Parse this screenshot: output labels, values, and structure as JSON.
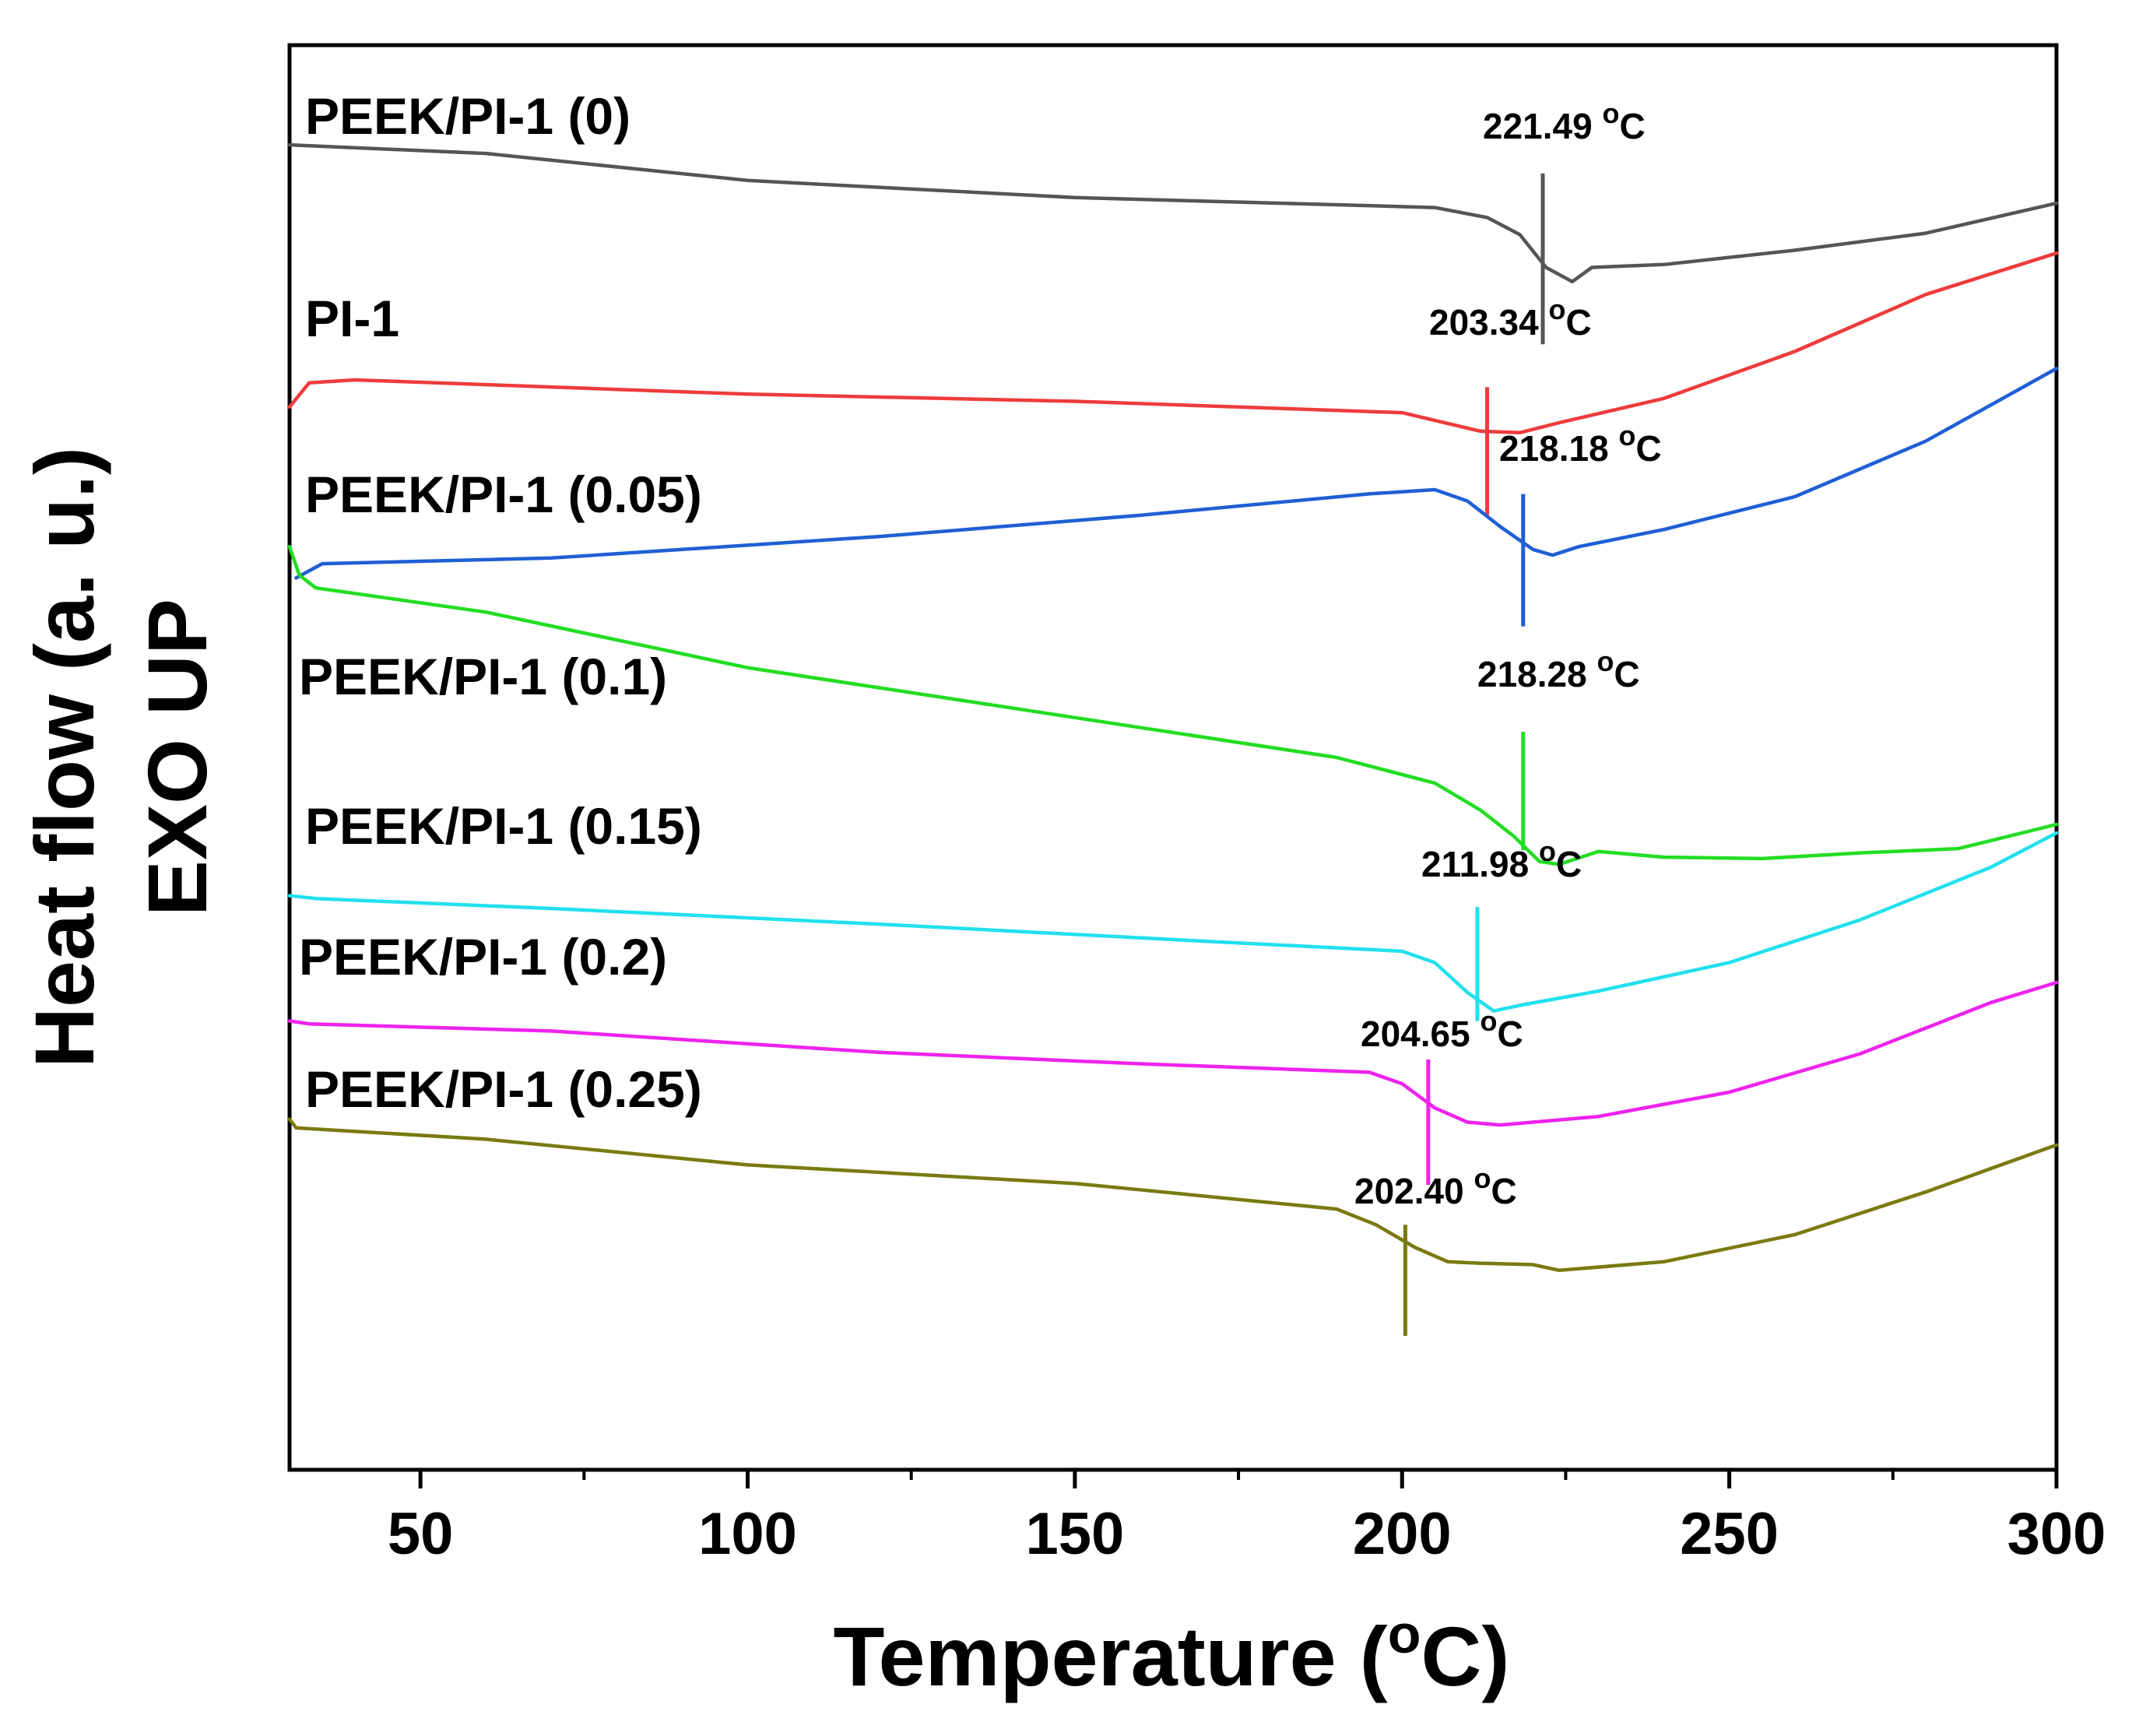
{
  "chart_data": {
    "type": "line",
    "xlabel": "Temperature (°C)",
    "xlabel_parts": {
      "main": "Temperature (",
      "sup": "o",
      "end": "C)"
    },
    "ylabel_line1": "Heat flow (a. u.)",
    "ylabel_line2": "EXO UP",
    "xlim": [
      30,
      300
    ],
    "ylim": [
      0,
      100
    ],
    "x_ticks": [
      50,
      100,
      150,
      200,
      250,
      300
    ],
    "x_tick_labels": [
      "50",
      "100",
      "150",
      "200",
      "250",
      "300"
    ],
    "x_minor_ticks": [
      75,
      125,
      175,
      225,
      275
    ],
    "yticks": "none (arbitrary units)",
    "annotation_unit_sup": "o",
    "annotation_unit_end": "C",
    "series": [
      {
        "name": "PEEK/PI-1 (0)",
        "color": "#555555",
        "annotation": "221.49",
        "marker_x": 221.5,
        "marker_y": [
          79,
          91
        ],
        "points": [
          [
            30,
            93
          ],
          [
            60,
            92.4
          ],
          [
            100,
            90.5
          ],
          [
            150,
            89.3
          ],
          [
            190,
            88.8
          ],
          [
            205,
            88.6
          ],
          [
            213,
            87.9
          ],
          [
            218,
            86.7
          ],
          [
            222,
            84.4
          ],
          [
            226,
            83.4
          ],
          [
            229,
            84.4
          ],
          [
            240,
            84.6
          ],
          [
            260,
            85.6
          ],
          [
            280,
            86.8
          ],
          [
            300,
            88.9
          ]
        ]
      },
      {
        "name": "PI-1",
        "color": "#ee3b3b",
        "annotation": "203.34",
        "marker_x": 213,
        "marker_y": [
          67,
          76
        ],
        "points": [
          [
            30,
            74.6
          ],
          [
            33,
            76.3
          ],
          [
            40,
            76.5
          ],
          [
            100,
            75.5
          ],
          [
            150,
            75
          ],
          [
            200,
            74.2
          ],
          [
            212,
            72.9
          ],
          [
            218,
            72.8
          ],
          [
            224,
            73.5
          ],
          [
            240,
            75.2
          ],
          [
            260,
            78.5
          ],
          [
            280,
            82.5
          ],
          [
            300,
            85.4
          ]
        ]
      },
      {
        "name": "PEEK/PI-1 (0.05)",
        "color": "#1f5fd6",
        "annotation": "218.18",
        "marker_x": 218.5,
        "marker_y": [
          59.2,
          68.5
        ],
        "points": [
          [
            31,
            62.6
          ],
          [
            35,
            63.6
          ],
          [
            70,
            64
          ],
          [
            120,
            65.5
          ],
          [
            160,
            67
          ],
          [
            195,
            68.5
          ],
          [
            205,
            68.8
          ],
          [
            210,
            68
          ],
          [
            215,
            66.2
          ],
          [
            220,
            64.6
          ],
          [
            223,
            64.2
          ],
          [
            227,
            64.8
          ],
          [
            240,
            66
          ],
          [
            260,
            68.3
          ],
          [
            280,
            72.2
          ],
          [
            300,
            77.3
          ]
        ]
      },
      {
        "name": "PEEK/PI-1 (0.1)",
        "color": "#22dd22",
        "annotation": "218.28",
        "marker_x": 218.5,
        "marker_y": [
          43.5,
          51.8
        ],
        "points": [
          [
            30,
            64.8
          ],
          [
            31.5,
            62.8
          ],
          [
            34,
            61.9
          ],
          [
            60,
            60.2
          ],
          [
            100,
            56.3
          ],
          [
            150,
            52.8
          ],
          [
            190,
            50
          ],
          [
            205,
            48.2
          ],
          [
            212,
            46.3
          ],
          [
            217,
            44.5
          ],
          [
            221,
            42.7
          ],
          [
            224,
            42.5
          ],
          [
            230,
            43.4
          ],
          [
            240,
            43
          ],
          [
            255,
            42.9
          ],
          [
            270,
            43.3
          ],
          [
            285,
            43.6
          ],
          [
            300,
            45.3
          ]
        ]
      },
      {
        "name": "PEEK/PI-1 (0.15)",
        "color": "#22e0ee",
        "annotation": "211.98",
        "marker_x": 211.5,
        "marker_y": [
          31.5,
          39.5
        ],
        "points": [
          [
            30,
            40.3
          ],
          [
            34,
            40.1
          ],
          [
            70,
            39.4
          ],
          [
            120,
            38.3
          ],
          [
            170,
            37.1
          ],
          [
            200,
            36.4
          ],
          [
            205,
            35.6
          ],
          [
            210,
            33.5
          ],
          [
            214,
            32.2
          ],
          [
            218,
            32.6
          ],
          [
            230,
            33.6
          ],
          [
            250,
            35.6
          ],
          [
            270,
            38.6
          ],
          [
            290,
            42.3
          ],
          [
            300,
            44.7
          ]
        ]
      },
      {
        "name": "PEEK/PI-1 (0.2)",
        "color": "#ee22ee",
        "annotation": "204.65",
        "marker_x": 204,
        "marker_y": [
          20,
          28.8
        ],
        "points": [
          [
            30,
            31.5
          ],
          [
            33,
            31.3
          ],
          [
            70,
            30.8
          ],
          [
            120,
            29.3
          ],
          [
            160,
            28.5
          ],
          [
            195,
            27.9
          ],
          [
            200,
            27.1
          ],
          [
            205,
            25.4
          ],
          [
            210,
            24.4
          ],
          [
            215,
            24.2
          ],
          [
            230,
            24.8
          ],
          [
            250,
            26.5
          ],
          [
            270,
            29.2
          ],
          [
            290,
            32.8
          ],
          [
            300,
            34.2
          ]
        ]
      },
      {
        "name": "PEEK/PI-1 (0.25)",
        "color": "#7a7a10",
        "annotation": "202.40",
        "marker_x": 200.5,
        "marker_y": [
          9.4,
          17.2
        ],
        "points": [
          [
            30,
            24.6
          ],
          [
            31,
            24
          ],
          [
            60,
            23.2
          ],
          [
            100,
            21.4
          ],
          [
            150,
            20.1
          ],
          [
            190,
            18.3
          ],
          [
            196,
            17.2
          ],
          [
            202,
            15.6
          ],
          [
            207,
            14.6
          ],
          [
            212,
            14.5
          ],
          [
            220,
            14.4
          ],
          [
            224,
            14
          ],
          [
            240,
            14.6
          ],
          [
            260,
            16.5
          ],
          [
            280,
            19.5
          ],
          [
            300,
            22.8
          ]
        ]
      }
    ]
  }
}
